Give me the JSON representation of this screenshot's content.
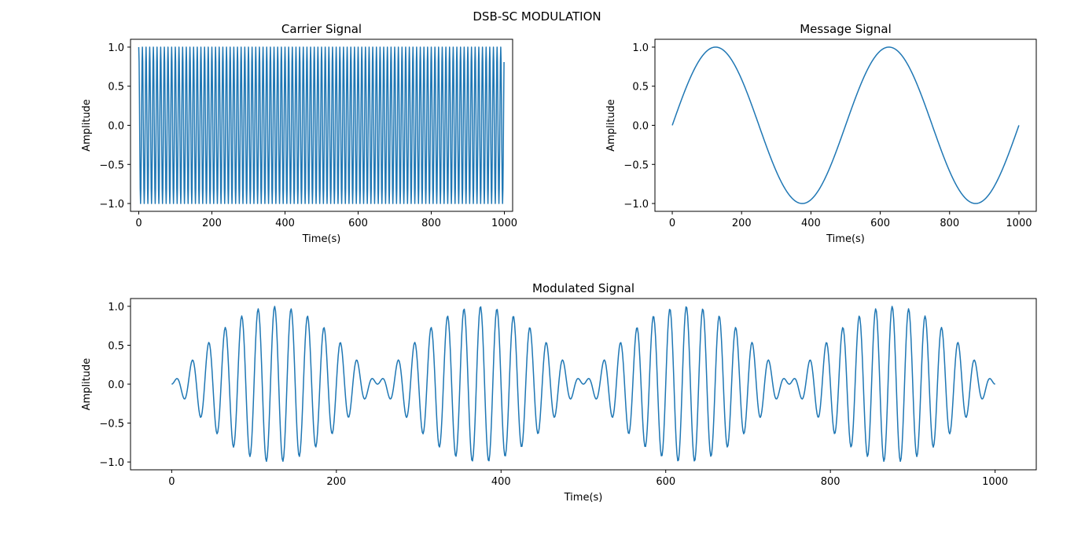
{
  "figure": {
    "suptitle": "DSB-SC MODULATION"
  },
  "chart_data": [
    {
      "type": "line",
      "title": "Carrier Signal",
      "xlabel": "Time(s)",
      "ylabel": "Amplitude",
      "xlim": [
        -22.5,
        1022.5
      ],
      "ylim": [
        -1.1,
        1.1
      ],
      "xticks": [
        0,
        200,
        400,
        600,
        800,
        1000
      ],
      "yticks": [
        -1.0,
        -0.5,
        0.0,
        0.5,
        1.0
      ],
      "xtick_labels": [
        "0",
        "200",
        "400",
        "600",
        "800",
        "1000"
      ],
      "ytick_labels": [
        "−1.0",
        "−0.5",
        "0.0",
        "0.5",
        "1.0"
      ],
      "grid": false,
      "series": [
        {
          "function": "cos(2*pi*fc*t)",
          "t_range": [
            0,
            999
          ],
          "fc_cycles_per_unit": 0.1,
          "samples": 1000,
          "color": "#1f77b4"
        }
      ]
    },
    {
      "type": "line",
      "title": "Message Signal",
      "xlabel": "Time(s)",
      "ylabel": "Amplitude",
      "xlim": [
        -50,
        1050
      ],
      "ylim": [
        -1.1,
        1.1
      ],
      "xticks": [
        0,
        200,
        400,
        600,
        800,
        1000
      ],
      "yticks": [
        -1.0,
        -0.5,
        0.0,
        0.5,
        1.0
      ],
      "xtick_labels": [
        "0",
        "200",
        "400",
        "600",
        "800",
        "1000"
      ],
      "ytick_labels": [
        "−1.0",
        "−0.5",
        "0.0",
        "0.5",
        "1.0"
      ],
      "grid": false,
      "series": [
        {
          "function": "sin(2*pi*fm*t)",
          "t_range": [
            0,
            1000
          ],
          "fm_cycles_per_unit": 0.002,
          "samples": 1000,
          "color": "#1f77b4"
        }
      ]
    },
    {
      "type": "line",
      "title": "Modulated Signal",
      "xlabel": "Time(s)",
      "ylabel": "Amplitude",
      "xlim": [
        -50,
        1050
      ],
      "ylim": [
        -1.1,
        1.1
      ],
      "xticks": [
        0,
        200,
        400,
        600,
        800,
        1000
      ],
      "yticks": [
        -1.0,
        -0.5,
        0.0,
        0.5,
        1.0
      ],
      "xtick_labels": [
        "0",
        "200",
        "400",
        "600",
        "800",
        "1000"
      ],
      "ytick_labels": [
        "−1.0",
        "−0.5",
        "0.0",
        "0.5",
        "1.0"
      ],
      "grid": false,
      "series": [
        {
          "function": "sin(2*pi*fm*t)*sin(2*pi*fc*t)",
          "t_range": [
            0,
            1000
          ],
          "fm_cycles_per_unit": 0.002,
          "fc_cycles_per_unit": 0.05,
          "samples": 1000,
          "color": "#1f77b4"
        }
      ]
    }
  ]
}
